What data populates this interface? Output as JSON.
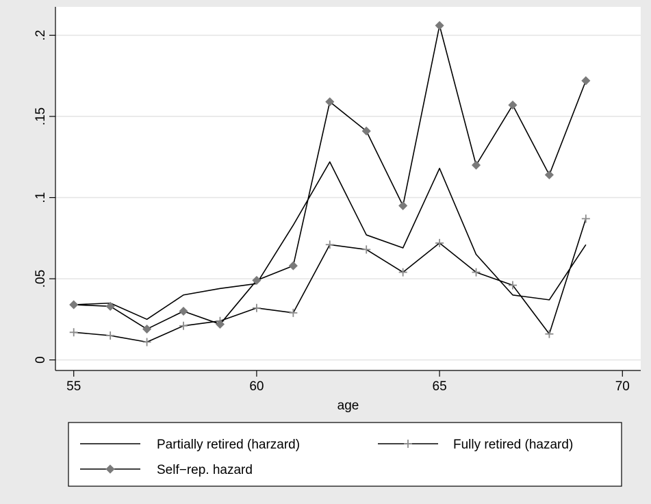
{
  "chart_data": {
    "type": "line",
    "xlabel": "age",
    "ylabel": "",
    "xlim": [
      54.5,
      70.5
    ],
    "ylim": [
      -0.0065,
      0.2175
    ],
    "xticks": [
      55,
      60,
      65,
      70
    ],
    "xtick_labels": [
      "55",
      "60",
      "65",
      "70"
    ],
    "yticks": [
      0,
      0.05,
      0.1,
      0.15,
      0.2
    ],
    "ytick_labels": [
      "0",
      ".05",
      ".1",
      ".15",
      ".2"
    ],
    "grid": true,
    "legend_position": "bottom",
    "x": [
      55,
      56,
      57,
      58,
      59,
      60,
      61,
      62,
      63,
      64,
      65,
      66,
      67,
      68,
      69
    ],
    "series": [
      {
        "name": "Partially retired (harzard)",
        "marker": "none",
        "color": "#000000",
        "values": [
          0.034,
          0.035,
          0.025,
          0.04,
          0.044,
          0.047,
          0.083,
          0.122,
          0.077,
          0.069,
          0.118,
          0.065,
          0.04,
          0.037,
          0.071
        ]
      },
      {
        "name": "Fully retired (hazard)",
        "marker": "plus",
        "color": "#000000",
        "marker_color": "#8c8c8c",
        "values": [
          0.017,
          0.015,
          0.011,
          0.021,
          0.024,
          0.032,
          0.029,
          0.071,
          0.068,
          0.054,
          0.072,
          0.054,
          0.046,
          0.016,
          0.087
        ]
      },
      {
        "name": "Self−rep. hazard",
        "marker": "diamond",
        "color": "#000000",
        "marker_color": "#7a7a7a",
        "values": [
          0.034,
          0.033,
          0.019,
          0.03,
          0.022,
          0.049,
          0.058,
          0.159,
          0.141,
          0.095,
          0.206,
          0.12,
          0.157,
          0.114,
          0.172
        ]
      }
    ]
  }
}
